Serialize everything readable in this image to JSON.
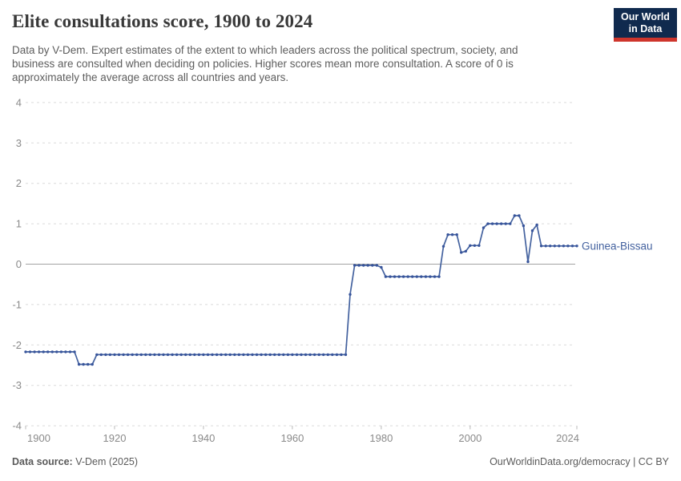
{
  "header": {
    "title": "Elite consultations score, 1900 to 2024",
    "subtitle_lines": [
      "Data by V-Dem. Expert estimates of the extent to which leaders across the political spectrum, society, and",
      "business are consulted when deciding on policies. Higher scores mean more consultation. A score of 0 is",
      "approximately the average across all countries and years."
    ],
    "logo": {
      "line1": "Our World",
      "line2": "in Data",
      "bg_color": "#102a4e",
      "accent_color": "#ce352c"
    }
  },
  "chart_data": {
    "type": "line",
    "title": "Elite consultations score, 1900 to 2024",
    "xlabel": "",
    "ylabel": "",
    "x_range": [
      1900,
      2024
    ],
    "ylim": [
      -4,
      4
    ],
    "yticks": [
      -4,
      -3,
      -2,
      -1,
      0,
      1,
      2,
      3,
      4
    ],
    "xticks": [
      1900,
      1920,
      1940,
      1960,
      1980,
      2000,
      2024
    ],
    "grid": true,
    "legend_position": "end-of-line-label",
    "colors": {
      "gridline": "#dadada",
      "zero_line": "#a3a3a3",
      "tick_label": "#8a8a8a"
    },
    "series": [
      {
        "name": "Guinea-Bissau",
        "color": "#44629f",
        "dot_color": "#37549b",
        "start_year": 1900,
        "end_year": 2024,
        "values": [
          -2.17,
          -2.17,
          -2.17,
          -2.17,
          -2.17,
          -2.17,
          -2.17,
          -2.17,
          -2.17,
          -2.17,
          -2.17,
          -2.17,
          -2.48,
          -2.48,
          -2.48,
          -2.48,
          -2.24,
          -2.24,
          -2.24,
          -2.24,
          -2.24,
          -2.24,
          -2.24,
          -2.24,
          -2.24,
          -2.24,
          -2.24,
          -2.24,
          -2.24,
          -2.24,
          -2.24,
          -2.24,
          -2.24,
          -2.24,
          -2.24,
          -2.24,
          -2.24,
          -2.24,
          -2.24,
          -2.24,
          -2.24,
          -2.24,
          -2.24,
          -2.24,
          -2.24,
          -2.24,
          -2.24,
          -2.24,
          -2.24,
          -2.24,
          -2.24,
          -2.24,
          -2.24,
          -2.24,
          -2.24,
          -2.24,
          -2.24,
          -2.24,
          -2.24,
          -2.24,
          -2.24,
          -2.24,
          -2.24,
          -2.24,
          -2.24,
          -2.24,
          -2.24,
          -2.24,
          -2.24,
          -2.24,
          -2.24,
          -2.24,
          -2.24,
          -0.75,
          -0.03,
          -0.03,
          -0.03,
          -0.03,
          -0.03,
          -0.03,
          -0.08,
          -0.31,
          -0.31,
          -0.31,
          -0.31,
          -0.31,
          -0.31,
          -0.31,
          -0.31,
          -0.31,
          -0.31,
          -0.31,
          -0.31,
          -0.31,
          0.44,
          0.73,
          0.73,
          0.73,
          0.29,
          0.32,
          0.46,
          0.46,
          0.46,
          0.9,
          1,
          1,
          1,
          1,
          1,
          1,
          1.2,
          1.2,
          0.95,
          0.06,
          0.83,
          0.97,
          0.45,
          0.45,
          0.45,
          0.45,
          0.45,
          0.45,
          0.45,
          0.45,
          0.45
        ]
      }
    ]
  },
  "footer": {
    "source_label": "Data source:",
    "source_value": " V-Dem (2025)",
    "link_text": "OurWorldinData.org/democracy",
    "separator": " | ",
    "license": "CC BY"
  }
}
